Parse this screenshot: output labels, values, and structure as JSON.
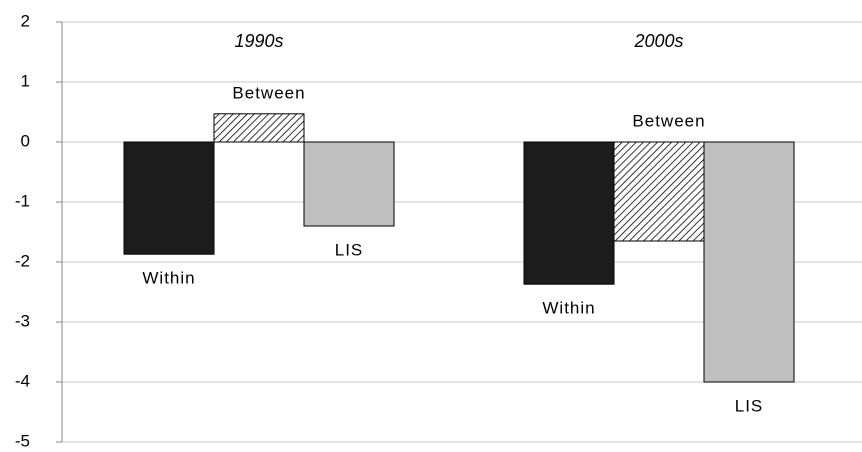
{
  "chart_data": {
    "type": "bar",
    "categories": [
      "1990s",
      "2000s"
    ],
    "series": [
      {
        "name": "Within",
        "color": "#1c1c1c",
        "values": [
          -1.87,
          -2.37
        ]
      },
      {
        "name": "Between",
        "color": "#ffffff",
        "pattern": "hatch",
        "values": [
          0.47,
          -1.65
        ]
      },
      {
        "name": "LIS",
        "color": "#bfbfbf",
        "values": [
          -1.4,
          -4.0
        ]
      }
    ],
    "ylim": [
      -5,
      2
    ],
    "yticks": [
      -5,
      -4,
      -3,
      -2,
      -1,
      0,
      1,
      2
    ],
    "grid": true
  }
}
